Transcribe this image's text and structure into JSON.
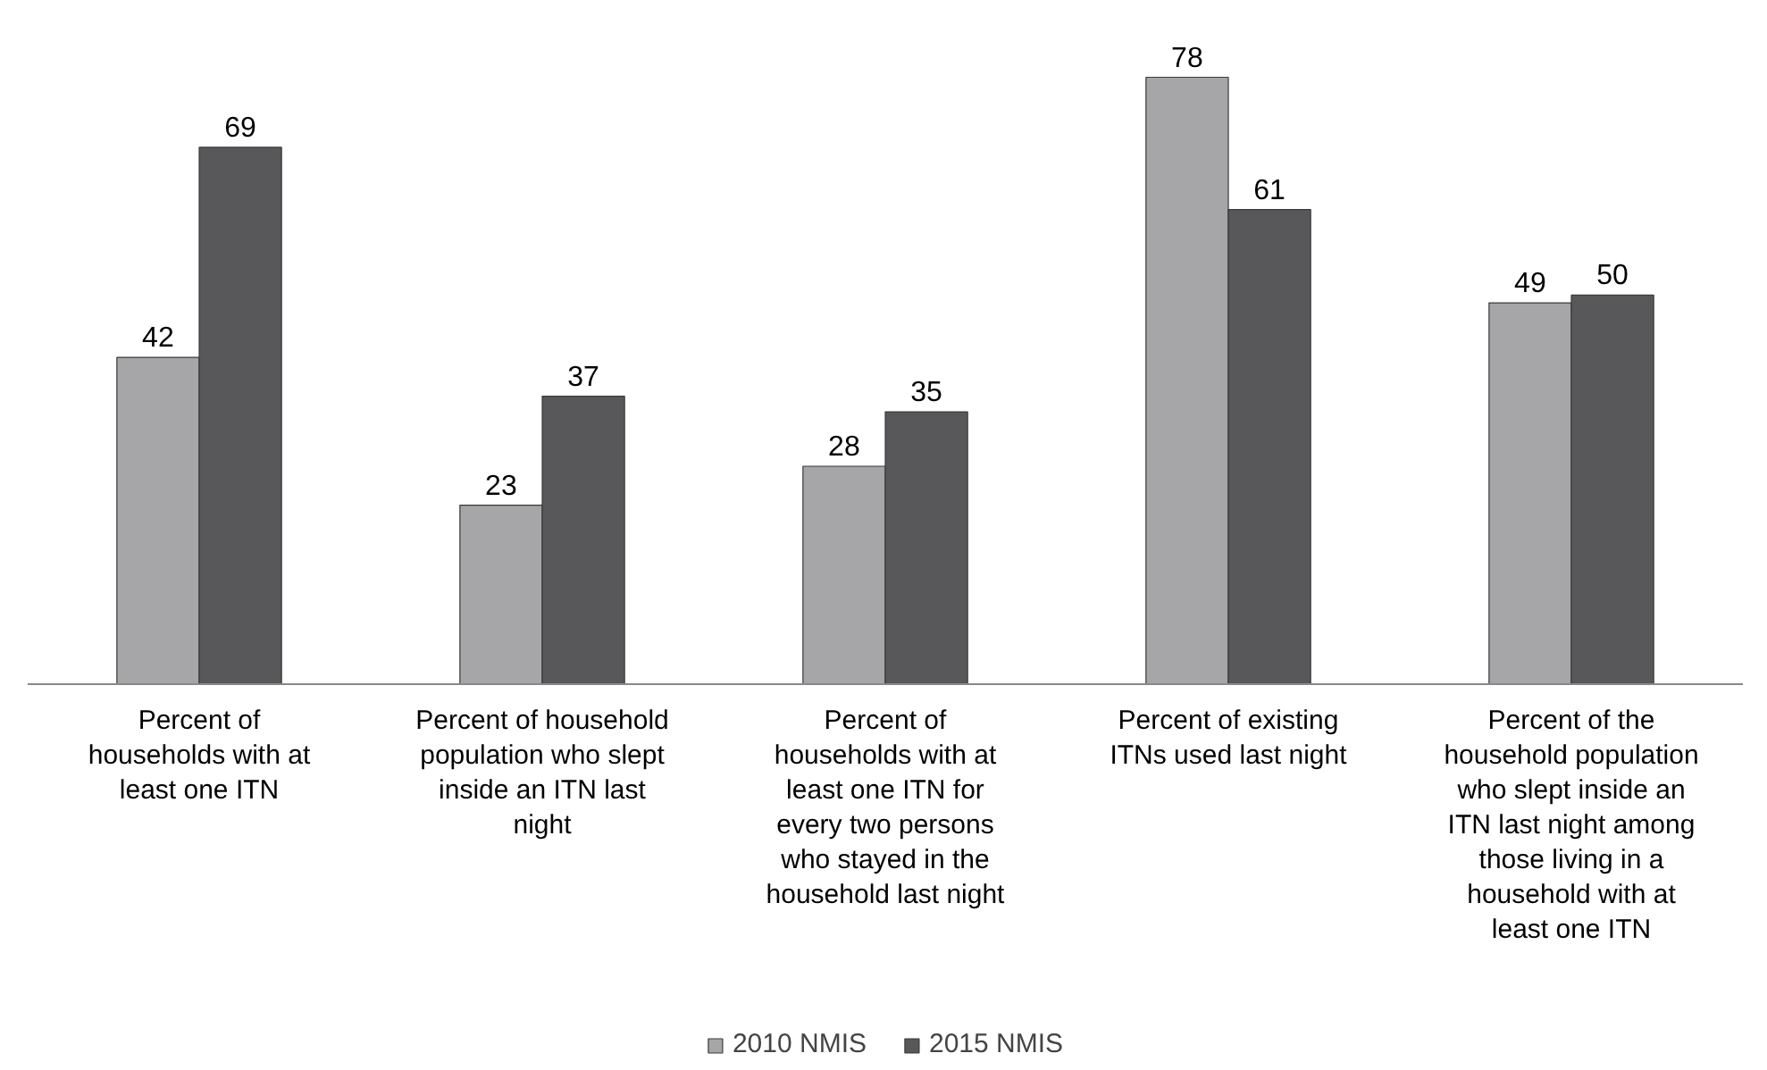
{
  "chart_data": {
    "type": "bar",
    "categories": [
      "Percent of households with at least one ITN",
      "Percent of household population who slept inside an ITN last night",
      "Percent of households with at least one ITN for every two persons who stayed in the household last night",
      "Percent of existing ITNs used last night",
      "Percent of the household population who slept inside an ITN last night among those living in a household with at least one ITN"
    ],
    "series": [
      {
        "name": "2010 NMIS",
        "color": "#a6a6a8",
        "values": [
          42,
          23,
          28,
          78,
          49
        ]
      },
      {
        "name": "2015 NMIS",
        "color": "#58585a",
        "values": [
          69,
          37,
          35,
          61,
          50
        ]
      }
    ],
    "data_labels": true,
    "grid": false,
    "legend": "bottom"
  }
}
